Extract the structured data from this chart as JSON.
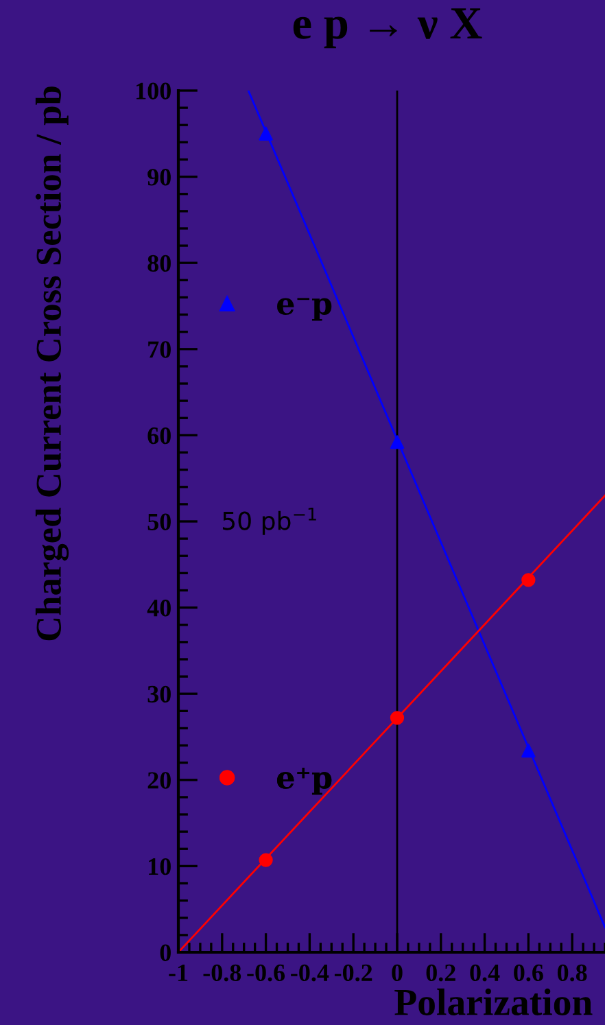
{
  "chart_data": {
    "type": "scatter",
    "title": "e p → ν X",
    "xlabel": "Polarization",
    "ylabel": "Charged Current Cross Section / pb",
    "x": [
      -0.6,
      0,
      0.6
    ],
    "series": [
      {
        "name": "e⁻p",
        "color": "#0000ff",
        "values": [
          95,
          59.2,
          23.4
        ],
        "marker": "triangle"
      },
      {
        "name": "e⁺p",
        "color": "#ff0000",
        "values": [
          10.7,
          27.2,
          43.2
        ],
        "marker": "circle"
      },
      {
        "type": "line",
        "color": "#0000ff",
        "x": [
          -0.68,
          0.95
        ],
        "values": [
          100,
          2.9
        ]
      },
      {
        "type": "line",
        "color": "#ff0000",
        "x": [
          -1,
          0.95
        ],
        "values": [
          0,
          53
        ]
      }
    ],
    "xlim": [
      -1,
      0.95
    ],
    "ylim": [
      0,
      100
    ],
    "xticks": [
      -1,
      -0.8,
      -0.6,
      -0.4,
      -0.2,
      0,
      0.2,
      0.4,
      0.6,
      0.8
    ],
    "yticks": [
      0,
      10,
      20,
      30,
      40,
      50,
      60,
      70,
      80,
      90,
      100
    ],
    "ref_lines": [
      {
        "axis": "x",
        "value": 0,
        "color": "#000000"
      }
    ],
    "annotations": [
      "50 pb$^{−1}$"
    ],
    "legend": "left",
    "grid": false
  }
}
